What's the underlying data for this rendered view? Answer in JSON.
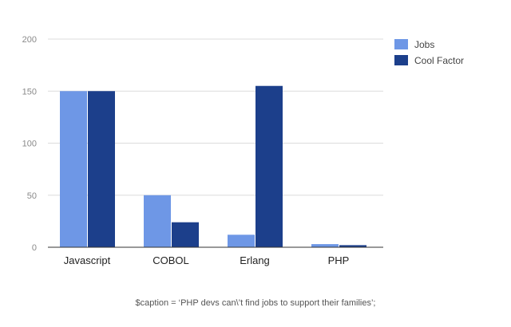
{
  "chart_data": {
    "type": "bar",
    "categories": [
      "Javascript",
      "COBOL",
      "Erlang",
      "PHP"
    ],
    "series": [
      {
        "name": "Jobs",
        "values": [
          150,
          50,
          12,
          3
        ],
        "color": "#6e97e6"
      },
      {
        "name": "Cool Factor",
        "values": [
          150,
          24,
          155,
          2
        ],
        "color": "#1c3f8b"
      }
    ],
    "title": "",
    "xlabel": "",
    "ylabel": "",
    "ylim": [
      0,
      200
    ],
    "yticks": [
      0,
      50,
      100,
      150,
      200
    ],
    "grid": true,
    "legend": "right"
  },
  "caption": "$caption = ‘PHP devs can\\’t find jobs to support their families’;"
}
